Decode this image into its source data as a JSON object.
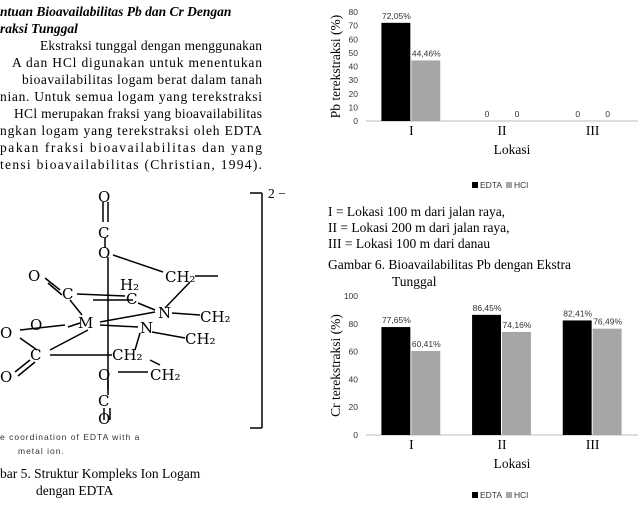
{
  "left_text": {
    "heading": [
      "ntuan Bioavailabilitas Pb dan Cr Dengan",
      "raksi Tunggal"
    ],
    "paragraph": [
      "Ekstraksi tunggal dengan menggunakan",
      "A dan HCl digunakan untuk menentukan",
      "bioavailabilitas logam berat dalam tanah",
      "nian. Untuk semua logam yang terekstraksi",
      "HCl merupakan fraksi yang bioavailabilitas",
      "ngkan logam yang terekstraksi oleh EDTA",
      "pakan fraksi bioavailabilitas dan yang",
      "tensi bioavailabilitas (Christian, 1994)."
    ]
  },
  "figure5": {
    "atoms": [
      "O",
      "C",
      "O",
      "CH₂",
      "H₂",
      "C",
      "O",
      "C",
      "O",
      "M",
      "N",
      "CH₂",
      "N",
      "CH₂",
      "O",
      "C",
      "CH₂",
      "O",
      "O",
      "CH₂",
      "C",
      "O"
    ],
    "charge": "2 −",
    "inset_caption": [
      "e coordination of EDTA with a",
      "metal ion."
    ],
    "caption": [
      "bar 5. Struktur   Kompleks   Ion   Logam",
      "dengan EDTA"
    ]
  },
  "notes": [
    "I    = Lokasi 100 m dari jalan raya,",
    "II   = Lokasi 200 m dari jalan raya,",
    "III = Lokasi 100 m dari danau"
  ],
  "figure6_caption": [
    "Gambar 6. Bioavailabilitas  Pb  dengan  Ekstra",
    "Tunggal"
  ],
  "chart_data": [
    {
      "type": "bar",
      "y_label": "Pb terekstraksi (%)",
      "x_label": "Lokasi",
      "categories": [
        "I",
        "II",
        "III"
      ],
      "series": [
        {
          "name": "EDTA",
          "color": "#000000",
          "values": [
            72.05,
            0,
            0
          ],
          "value_labels": [
            "72,05%",
            "0",
            "0"
          ]
        },
        {
          "name": "HCl",
          "color": "#a6a6a6",
          "values": [
            44.46,
            0,
            0
          ],
          "value_labels": [
            "44,46%",
            "0",
            "0"
          ]
        }
      ],
      "ylim": [
        0,
        80
      ],
      "yticks": [
        0,
        10,
        20,
        30,
        40,
        50,
        60,
        70,
        80
      ],
      "grid": false,
      "legend": "bottom"
    },
    {
      "type": "bar",
      "y_label": "Cr terekstraksi (%)",
      "x_label": "Lokasi",
      "categories": [
        "I",
        "II",
        "III"
      ],
      "series": [
        {
          "name": "EDTA",
          "color": "#000000",
          "values": [
            77.65,
            86.45,
            82.41
          ],
          "value_labels": [
            "77,65%",
            "86,45%",
            "82,41%"
          ]
        },
        {
          "name": "HCl",
          "color": "#a6a6a6",
          "values": [
            60.41,
            74.16,
            76.49
          ],
          "value_labels": [
            "60,41%",
            "74,16%",
            "76,49%"
          ]
        }
      ],
      "ylim": [
        0,
        100
      ],
      "yticks": [
        0,
        20,
        40,
        60,
        80,
        100
      ],
      "grid": false,
      "legend": "bottom"
    }
  ]
}
